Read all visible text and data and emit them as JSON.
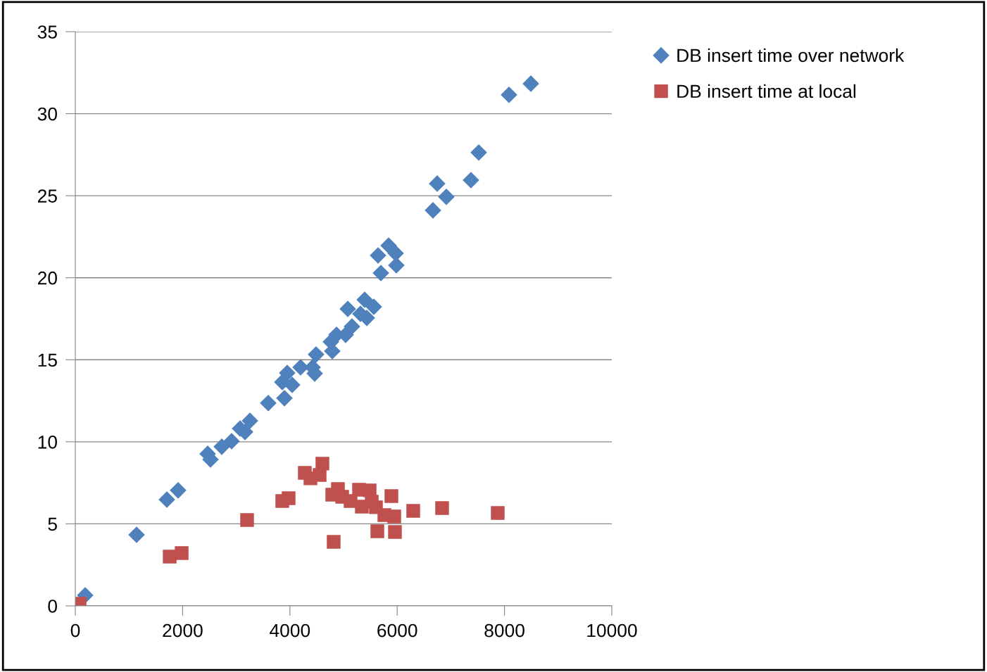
{
  "chart_data": {
    "type": "scatter",
    "xlim": [
      0,
      10000
    ],
    "ylim": [
      0,
      35
    ],
    "xticks": [
      0,
      2000,
      4000,
      6000,
      8000,
      10000
    ],
    "yticks": [
      0,
      5,
      10,
      15,
      20,
      25,
      30,
      35
    ],
    "grid": "y",
    "legend": "right",
    "series": [
      {
        "name": "DB insert time over network",
        "color": "#4f81bd",
        "marker": "diamond",
        "x": [
          184,
          1142,
          1706,
          1916,
          2467,
          2520,
          2730,
          2913,
          3071,
          3163,
          3255,
          3596,
          3858,
          3898,
          3950,
          4000,
          4042,
          4199,
          4423,
          4488,
          4462,
          4764,
          4790,
          4869,
          5039,
          5079,
          5157,
          5262,
          5315,
          5394,
          5433,
          5564,
          5643,
          5696,
          5840,
          5971,
          5984,
          6667,
          6745,
          6916,
          7336,
          7375,
          7520,
          8084,
          8491
        ],
        "values": [
          0.64,
          4.33,
          6.48,
          7.04,
          9.27,
          8.92,
          9.7,
          10.04,
          10.81,
          10.6,
          11.28,
          12.36,
          13.64,
          12.66,
          14.2,
          null,
          13.47,
          14.54,
          14.54,
          15.32,
          14.16,
          16.09,
          15.53,
          16.52,
          16.52,
          18.1,
          17.03,
          null,
          17.8,
          18.66,
          17.55,
          18.23,
          21.36,
          20.29,
          21.96,
          21.49,
          20.76,
          24.11,
          25.74,
          24.93,
          null,
          25.95,
          27.63,
          31.15,
          31.83
        ]
      },
      {
        "name": "DB insert time at local",
        "color": "#c0504d",
        "marker": "square",
        "x": [
          79,
          1759,
          1982,
          3202,
          3858,
          3976,
          4278,
          4383,
          4554,
          4606,
          4816,
          4790,
          4895,
          4974,
          5131,
          5289,
          5341,
          5486,
          5525,
          5604,
          5630,
          5761,
          5892,
          5945,
          5958,
          6299,
          6837,
          7874
        ],
        "values": [
          0.13,
          3.0,
          3.22,
          5.23,
          6.39,
          6.56,
          8.11,
          7.77,
          7.98,
          8.67,
          3.9,
          6.78,
          7.12,
          6.65,
          6.39,
          7.08,
          6.05,
          7.04,
          6.35,
          6.01,
          4.55,
          5.53,
          6.69,
          5.45,
          4.5,
          5.79,
          5.96,
          5.66
        ]
      }
    ]
  }
}
